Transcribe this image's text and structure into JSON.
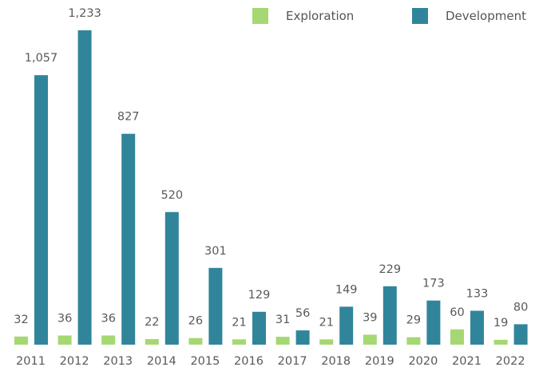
{
  "chart_data": {
    "type": "bar",
    "title": "",
    "xlabel": "",
    "ylabel": "",
    "categories": [
      "2011",
      "2012",
      "2013",
      "2014",
      "2015",
      "2016",
      "2017",
      "2018",
      "2019",
      "2020",
      "2021",
      "2022"
    ],
    "series": [
      {
        "name": "Exploration",
        "color": "#a5d872",
        "values": [
          32,
          36,
          36,
          22,
          26,
          21,
          31,
          21,
          39,
          29,
          60,
          19
        ],
        "labels": [
          "32",
          "36",
          "36",
          "22",
          "26",
          "21",
          "31",
          "21",
          "39",
          "29",
          "60",
          "19"
        ]
      },
      {
        "name": "Development",
        "color": "#31859b",
        "values": [
          1057,
          1233,
          827,
          520,
          301,
          129,
          56,
          149,
          229,
          173,
          133,
          80
        ],
        "labels": [
          "1,057",
          "1,233",
          "827",
          "520",
          "301",
          "129",
          "56",
          "149",
          "229",
          "173",
          "133",
          "80"
        ]
      }
    ],
    "ylim": [
      0,
      1233
    ],
    "grid": false,
    "axis_lines": false,
    "legend_position": "top-right"
  }
}
